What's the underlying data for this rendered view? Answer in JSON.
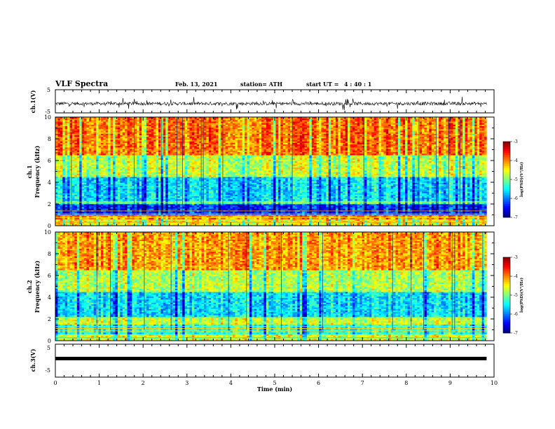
{
  "header": {
    "title": "VLF Spectra",
    "date": "Feb. 13, 2021",
    "station": "station= ATH",
    "start_label": "start  UT =",
    "start_value": "4 : 40 : 1"
  },
  "chart_data": [
    {
      "type": "line",
      "panel": "ch1-waveform",
      "ylabel": "ch.1(V)",
      "ylim": [
        -5,
        5
      ],
      "yticks": [
        "5",
        "-5"
      ],
      "xlim": [
        0,
        10
      ],
      "color": "#000000",
      "description": "noisy waveform centered near -1 V with amplitude about 1-2 V"
    },
    {
      "type": "heatmap",
      "panel": "ch1-spectrogram",
      "ylabel": "ch.1\nFrequency (kHz)",
      "ylim": [
        0,
        10
      ],
      "yticks": [
        "0",
        "2",
        "4",
        "6",
        "8",
        "10"
      ],
      "xlim": [
        0,
        9.83
      ],
      "bands": [
        {
          "f": [
            0,
            0.6
          ],
          "logpsd": -4.5
        },
        {
          "f": [
            0.6,
            1.0
          ],
          "logpsd": -4.0
        },
        {
          "f": [
            1.0,
            2.0
          ],
          "logpsd": -6.3
        },
        {
          "f": [
            2.0,
            2.3
          ],
          "logpsd": -5.2
        },
        {
          "f": [
            2.3,
            4.5
          ],
          "logpsd": -5.6
        },
        {
          "f": [
            4.5,
            6.5
          ],
          "logpsd": -4.7
        },
        {
          "f": [
            6.5,
            10.0
          ],
          "logpsd": -3.9
        }
      ],
      "colorbar": {
        "min": -7,
        "max": -3,
        "ticks": [
          "-3",
          "-4",
          "-5",
          "-6",
          "-7"
        ],
        "label": "log(PSD)(V²/Hz)"
      }
    },
    {
      "type": "heatmap",
      "panel": "ch2-spectrogram",
      "ylabel": "ch.2\nFrequency (kHz)",
      "ylim": [
        0,
        10
      ],
      "yticks": [
        "0",
        "2",
        "4",
        "6",
        "8",
        "10"
      ],
      "xlim": [
        0,
        9.83
      ],
      "bands": [
        {
          "f": [
            0,
            0.6
          ],
          "logpsd": -4.6
        },
        {
          "f": [
            0.6,
            1.5
          ],
          "logpsd": -5.3
        },
        {
          "f": [
            1.5,
            2.2
          ],
          "logpsd": -4.7
        },
        {
          "f": [
            2.2,
            4.5
          ],
          "logpsd": -5.6
        },
        {
          "f": [
            4.5,
            6.5
          ],
          "logpsd": -4.8
        },
        {
          "f": [
            6.5,
            10.0
          ],
          "logpsd": -4.1
        }
      ],
      "colorbar": {
        "min": -7,
        "max": -3,
        "ticks": [
          "-3",
          "-4",
          "-5",
          "-6",
          "-7"
        ],
        "label": "log(PSD)(V²/Hz)"
      }
    },
    {
      "type": "line",
      "panel": "ch3-waveform",
      "ylabel": "ch.3(V)",
      "ylim": [
        -5,
        5
      ],
      "yticks": [
        "5",
        "-5"
      ],
      "xlim": [
        0,
        10
      ],
      "value": 0,
      "color": "#000000"
    }
  ],
  "xaxis": {
    "label": "Time (min)",
    "ticks": [
      "0",
      "1",
      "2",
      "3",
      "4",
      "5",
      "6",
      "7",
      "8",
      "9",
      "10"
    ],
    "range": [
      0,
      10
    ]
  }
}
